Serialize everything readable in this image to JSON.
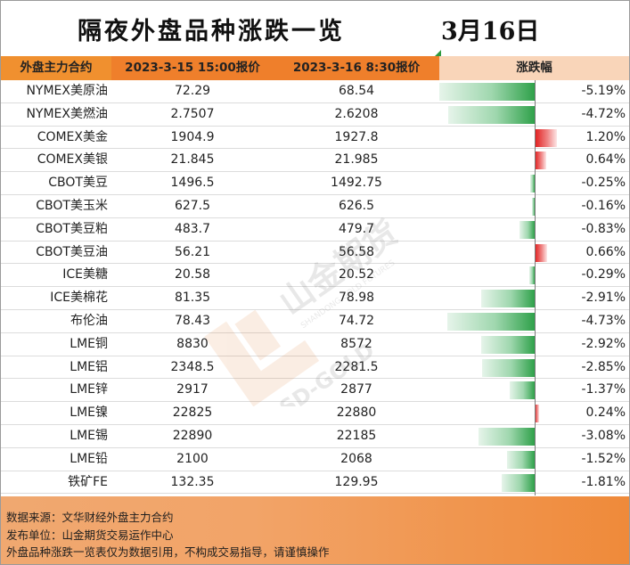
{
  "title": "隔夜外盘品种涨跌一览",
  "date": "3月16日",
  "header": {
    "name": "外盘主力合约",
    "prev": "2023-3-15 15:00报价",
    "curr": "2023-3-16 8:30报价",
    "change": "涨跌幅"
  },
  "rows": [
    {
      "name": "NYMEX美原油",
      "prev": "72.29",
      "curr": "68.54",
      "pct": "-5.19%",
      "value": -5.19
    },
    {
      "name": "NYMEX美燃油",
      "prev": "2.7507",
      "curr": "2.6208",
      "pct": "-4.72%",
      "value": -4.72
    },
    {
      "name": "COMEX美金",
      "prev": "1904.9",
      "curr": "1927.8",
      "pct": "1.20%",
      "value": 1.2
    },
    {
      "name": "COMEX美银",
      "prev": "21.845",
      "curr": "21.985",
      "pct": "0.64%",
      "value": 0.64
    },
    {
      "name": "CBOT美豆",
      "prev": "1496.5",
      "curr": "1492.75",
      "pct": "-0.25%",
      "value": -0.25
    },
    {
      "name": "CBOT美玉米",
      "prev": "627.5",
      "curr": "626.5",
      "pct": "-0.16%",
      "value": -0.16
    },
    {
      "name": "CBOT美豆粕",
      "prev": "483.7",
      "curr": "479.7",
      "pct": "-0.83%",
      "value": -0.83
    },
    {
      "name": "CBOT美豆油",
      "prev": "56.21",
      "curr": "56.58",
      "pct": "0.66%",
      "value": 0.66
    },
    {
      "name": "ICE美糖",
      "prev": "20.58",
      "curr": "20.52",
      "pct": "-0.29%",
      "value": -0.29
    },
    {
      "name": "ICE美棉花",
      "prev": "81.35",
      "curr": "78.98",
      "pct": "-2.91%",
      "value": -2.91
    },
    {
      "name": "布伦油",
      "prev": "78.43",
      "curr": "74.72",
      "pct": "-4.73%",
      "value": -4.73
    },
    {
      "name": "LME铜",
      "prev": "8830",
      "curr": "8572",
      "pct": "-2.92%",
      "value": -2.92
    },
    {
      "name": "LME铝",
      "prev": "2348.5",
      "curr": "2281.5",
      "pct": "-2.85%",
      "value": -2.85
    },
    {
      "name": "LME锌",
      "prev": "2917",
      "curr": "2877",
      "pct": "-1.37%",
      "value": -1.37
    },
    {
      "name": "LME镍",
      "prev": "22825",
      "curr": "22880",
      "pct": "0.24%",
      "value": 0.24
    },
    {
      "name": "LME锡",
      "prev": "22890",
      "curr": "22185",
      "pct": "-3.08%",
      "value": -3.08
    },
    {
      "name": "LME铅",
      "prev": "2100",
      "curr": "2068",
      "pct": "-1.52%",
      "value": -1.52
    },
    {
      "name": "铁矿FE",
      "prev": "132.35",
      "curr": "129.95",
      "pct": "-1.81%",
      "value": -1.81
    }
  ],
  "watermark": {
    "brand": "山金期货",
    "en": "SHANDONG GOLD FUTURES",
    "sd": "SD-GOLD"
  },
  "footer": {
    "source": "数据来源：文华财经外盘主力合约",
    "publisher": "发布单位：山金期货交易运作中心",
    "disclaimer": "外盘品种涨跌一览表仅为数据引用，不构成交易指导，请谨慎操作"
  },
  "colors": {
    "header_orange": "#ef7f2b",
    "up_red": "#e11b1b",
    "down_green": "#2fa14a"
  }
}
